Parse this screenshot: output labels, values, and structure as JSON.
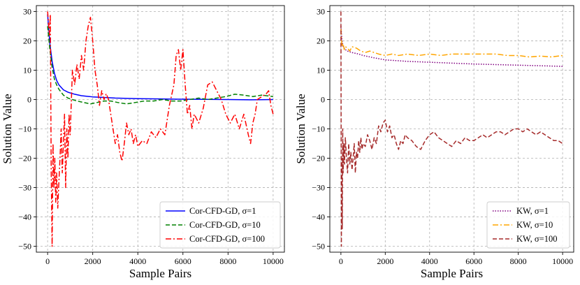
{
  "chart_data": [
    {
      "type": "line",
      "panel": "left",
      "xlabel": "Sample Pairs",
      "ylabel": "Solution Value",
      "xlim": [
        -500,
        10500
      ],
      "ylim": [
        -52,
        32
      ],
      "xticks": [
        0,
        2000,
        4000,
        6000,
        8000,
        10000
      ],
      "yticks": [
        -50,
        -40,
        -30,
        -20,
        -10,
        0,
        10,
        20,
        30
      ],
      "grid": true,
      "legend_position": "lower-right",
      "series": [
        {
          "name": "Cor-CFD-GD, σ=1",
          "color": "#0000ff",
          "style": "solid",
          "x": [
            0,
            100,
            200,
            300,
            400,
            500,
            700,
            900,
            1200,
            1500,
            2000,
            2500,
            3000,
            4000,
            5000,
            6000,
            7000,
            8000,
            9000,
            10000
          ],
          "y": [
            29,
            19,
            13,
            9,
            6.5,
            5,
            3.3,
            2.5,
            1.8,
            1.3,
            0.9,
            0.7,
            0.5,
            0.3,
            0.2,
            0.1,
            0.05,
            0.0,
            -0.1,
            0.0
          ]
        },
        {
          "name": "Cor-CFD-GD, σ=10",
          "color": "#008000",
          "style": "dashed",
          "x": [
            0,
            100,
            200,
            300,
            400,
            500,
            700,
            900,
            1100,
            1300,
            1600,
            1900,
            2200,
            2500,
            2800,
            3100,
            3500,
            3900,
            4300,
            4700,
            5100,
            5500,
            5900,
            6300,
            6700,
            7100,
            7500,
            7900,
            8300,
            8700,
            9100,
            9500,
            9800,
            10000
          ],
          "y": [
            25,
            17,
            11,
            7,
            5,
            3.5,
            1.5,
            0.5,
            0.0,
            -0.5,
            -1.0,
            -1.5,
            -1.0,
            -0.5,
            -0.5,
            -1.0,
            -1.5,
            -1.0,
            -0.5,
            -0.5,
            0.0,
            -0.5,
            -0.5,
            0.0,
            0.5,
            0.0,
            0.5,
            1.0,
            1.8,
            1.5,
            1.0,
            1.5,
            1.2,
            1.0
          ]
        },
        {
          "name": "Cor-CFD-GD, σ=100",
          "color": "#ff0000",
          "style": "dashdot",
          "x": [
            0,
            80,
            120,
            160,
            200,
            240,
            280,
            320,
            360,
            400,
            450,
            500,
            550,
            600,
            650,
            700,
            750,
            800,
            850,
            900,
            950,
            1000,
            1100,
            1200,
            1300,
            1400,
            1500,
            1600,
            1700,
            1800,
            1900,
            2000,
            2100,
            2200,
            2300,
            2400,
            2500,
            2600,
            2700,
            2800,
            2900,
            3000,
            3100,
            3200,
            3300,
            3400,
            3500,
            3600,
            3700,
            3800,
            3900,
            4000,
            4200,
            4400,
            4600,
            4800,
            5000,
            5200,
            5400,
            5600,
            5700,
            5800,
            5900,
            6000,
            6100,
            6200,
            6300,
            6400,
            6500,
            6700,
            6900,
            7100,
            7300,
            7500,
            7700,
            7900,
            8100,
            8300,
            8500,
            8700,
            8900,
            9000,
            9100,
            9200,
            9300,
            9500,
            9700,
            9800,
            9900,
            10000
          ],
          "y": [
            30,
            22,
            29,
            -25,
            -50,
            -15,
            -30,
            -20,
            -35,
            -25,
            -37,
            -28,
            -20,
            -10,
            -25,
            -15,
            -5,
            -30,
            -10,
            -20,
            -5,
            -12,
            10,
            5,
            12,
            7,
            15,
            10,
            20,
            25,
            28,
            20,
            10,
            5,
            -2,
            3,
            0,
            2,
            0,
            -5,
            -10,
            -15,
            -12,
            -18,
            -21,
            -15,
            -8,
            -12,
            -10,
            -15,
            -12,
            -16,
            -14,
            -15,
            -11,
            -13,
            -10,
            -12,
            -2,
            5,
            15,
            17,
            10,
            17,
            5,
            -5,
            -2,
            -10,
            -5,
            -8,
            -3,
            5,
            6,
            3,
            0,
            -5,
            -8,
            -5,
            -10,
            -5,
            -12,
            -15,
            -8,
            -5,
            0,
            1,
            2,
            3,
            -2,
            -5
          ]
        }
      ]
    },
    {
      "type": "line",
      "panel": "right",
      "xlabel": "Sample Pairs",
      "ylabel": "Solution Value",
      "xlim": [
        -500,
        10500
      ],
      "ylim": [
        -52,
        32
      ],
      "xticks": [
        0,
        2000,
        4000,
        6000,
        8000,
        10000
      ],
      "yticks": [
        -50,
        -40,
        -30,
        -20,
        -10,
        0,
        10,
        20,
        30
      ],
      "grid": true,
      "legend_position": "lower-right",
      "series": [
        {
          "name": "KW, σ=1",
          "color": "#800080",
          "style": "dotted",
          "x": [
            0,
            50,
            100,
            200,
            300,
            500,
            800,
            1000,
            1500,
            2000,
            3000,
            4000,
            5000,
            6000,
            7000,
            8000,
            9000,
            10000
          ],
          "y": [
            25,
            20,
            18,
            17,
            16.5,
            16,
            15.5,
            15,
            14.2,
            13.5,
            13,
            12.7,
            12.4,
            12.1,
            11.9,
            11.7,
            11.5,
            11.3
          ]
        },
        {
          "name": "KW, σ=10",
          "color": "#ffa500",
          "style": "dashdot",
          "x": [
            0,
            50,
            100,
            150,
            200,
            300,
            400,
            500,
            700,
            900,
            1100,
            1300,
            1500,
            1700,
            2000,
            2300,
            2600,
            3000,
            3500,
            4000,
            4500,
            5000,
            5500,
            6000,
            6500,
            7000,
            7500,
            8000,
            8500,
            9000,
            9500,
            10000
          ],
          "y": [
            24,
            18,
            19,
            17,
            18,
            17.5,
            16.5,
            18,
            17.5,
            16.5,
            16,
            16.5,
            16,
            15.5,
            15,
            15.5,
            15,
            15.5,
            15,
            15.5,
            15,
            15.5,
            15.5,
            15.5,
            15.5,
            15.5,
            15,
            15,
            14.5,
            14.8,
            14.5,
            15
          ]
        },
        {
          "name": "KW, σ=100",
          "color": "#a52a2a",
          "style": "dashed",
          "x": [
            0,
            20,
            40,
            60,
            80,
            100,
            130,
            160,
            200,
            250,
            300,
            350,
            400,
            450,
            500,
            550,
            600,
            650,
            700,
            750,
            800,
            850,
            900,
            950,
            1000,
            1100,
            1200,
            1300,
            1400,
            1500,
            1600,
            1700,
            1800,
            1900,
            2000,
            2100,
            2200,
            2300,
            2400,
            2500,
            2600,
            2700,
            2800,
            2900,
            3000,
            3200,
            3400,
            3600,
            3800,
            4000,
            4200,
            4400,
            4600,
            4800,
            5000,
            5200,
            5400,
            5600,
            5800,
            6000,
            6200,
            6400,
            6600,
            6800,
            7000,
            7200,
            7400,
            7600,
            7800,
            8000,
            8200,
            8400,
            8600,
            8800,
            9000,
            9200,
            9400,
            9600,
            9800,
            10000
          ],
          "y": [
            30,
            -50,
            -20,
            -44,
            -10,
            -25,
            -15,
            -22,
            -13,
            -20,
            -25,
            -15,
            -22,
            -18,
            -24,
            -20,
            -15,
            -25,
            -18,
            -20,
            -14,
            -18,
            -13,
            -17,
            -15,
            -16,
            -12,
            -14,
            -17,
            -13,
            -15,
            -9,
            -11,
            -8,
            -7,
            -11,
            -9,
            -13,
            -12,
            -15,
            -17,
            -14,
            -15,
            -12,
            -13,
            -14,
            -16,
            -17,
            -14,
            -12,
            -11,
            -13,
            -14,
            -15,
            -16,
            -14,
            -15,
            -13,
            -14,
            -14,
            -13,
            -12,
            -13,
            -12,
            -11,
            -11,
            -12,
            -11,
            -10,
            -10,
            -11,
            -10,
            -11,
            -12,
            -11,
            -12,
            -13,
            -14,
            -14,
            -15
          ]
        }
      ]
    }
  ]
}
